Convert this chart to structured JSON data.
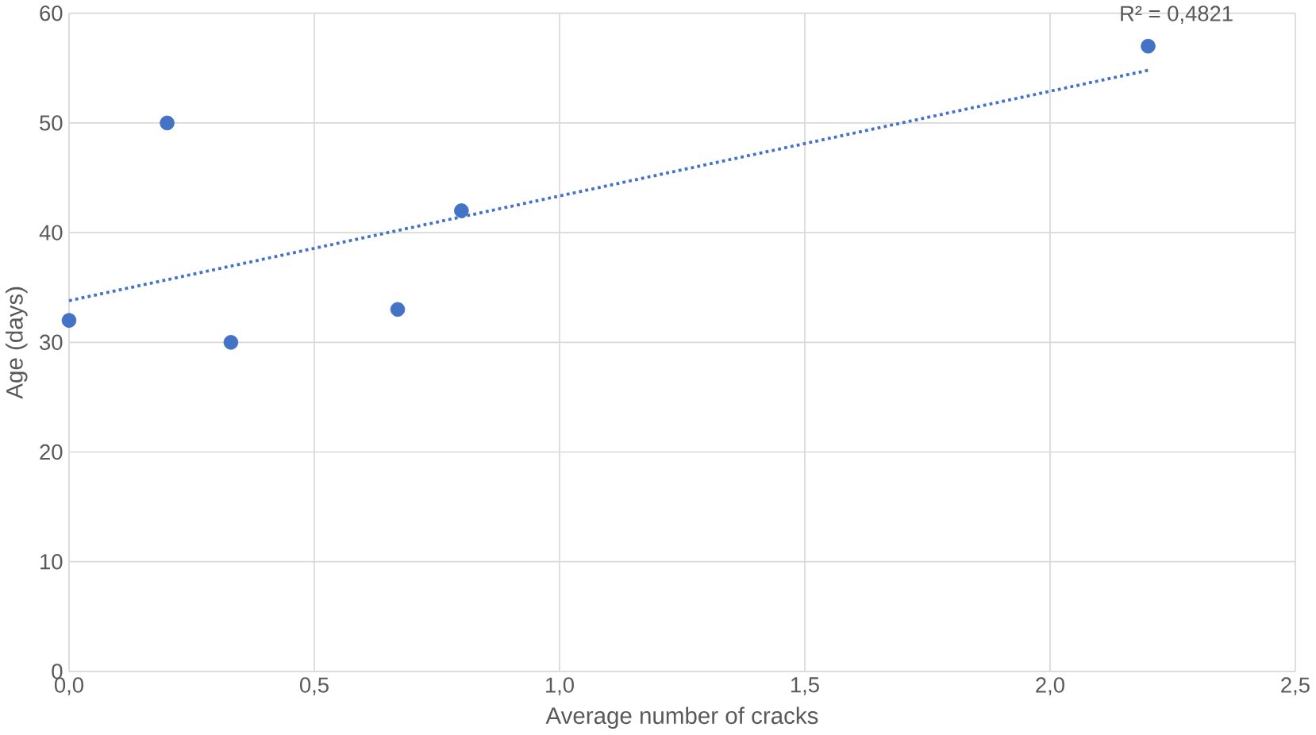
{
  "chart_data": {
    "type": "scatter",
    "xlabel": "Average number of cracks",
    "ylabel": "Age (days)",
    "annotations": [
      "R² = 0,4821"
    ],
    "xlim": [
      0,
      2.5
    ],
    "ylim": [
      0,
      60
    ],
    "xticks": [
      {
        "value": 0,
        "label": "0,0"
      },
      {
        "value": 0.5,
        "label": "0,5"
      },
      {
        "value": 1,
        "label": "1,0"
      },
      {
        "value": 1.5,
        "label": "1,5"
      },
      {
        "value": 2,
        "label": "2,0"
      },
      {
        "value": 2.5,
        "label": "2,5"
      }
    ],
    "yticks": [
      0,
      10,
      20,
      30,
      40,
      50,
      60
    ],
    "grid": true,
    "marker": "circle",
    "series": [
      {
        "color": "#4472c4",
        "x": [
          0,
          0.2,
          0.33,
          0.67,
          0.8,
          2.2
        ],
        "values": [
          32,
          50,
          30,
          33,
          42,
          57
        ]
      },
      {
        "type": "line",
        "line_style": "dotted",
        "marker": "none",
        "color": "#4472c4",
        "x": [
          0,
          2.2
        ],
        "values": [
          33.8,
          54.8
        ]
      }
    ]
  }
}
